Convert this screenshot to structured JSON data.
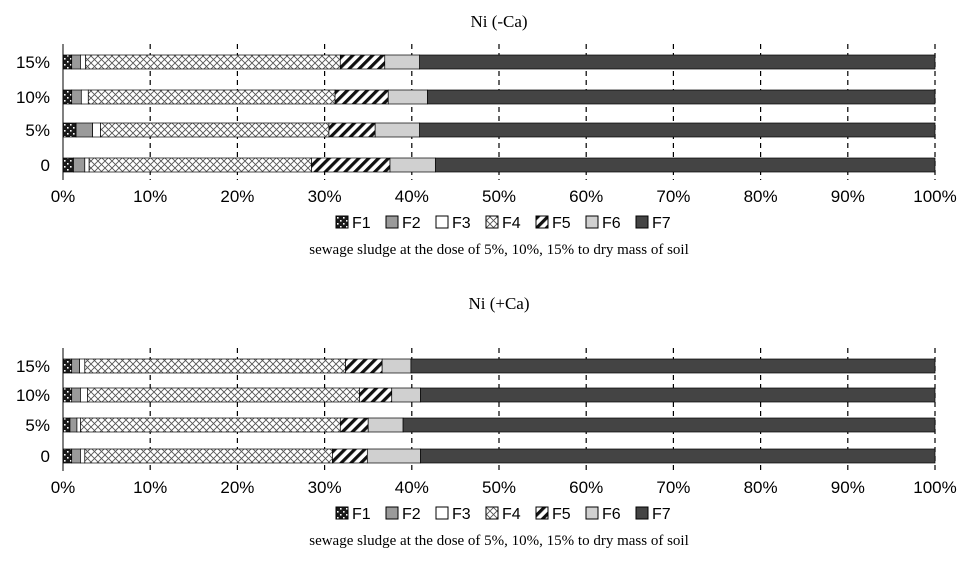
{
  "chart_data": [
    {
      "type": "bar",
      "orientation": "horizontal",
      "stacked": "percent",
      "title": "Ni (-Ca)",
      "xlabel": "sewage sludge at the dose of 5%, 10%, 15% to dry mass of soil",
      "categories": [
        "0",
        "5%",
        "10%",
        "15%"
      ],
      "xlim": [
        0,
        100
      ],
      "xticks": [
        "0%",
        "10%",
        "20%",
        "30%",
        "40%",
        "50%",
        "60%",
        "70%",
        "80%",
        "90%",
        "100%"
      ],
      "legend": "bottom",
      "series": [
        {
          "name": "F1",
          "values": [
            1.2,
            1.5,
            1.0,
            1.0
          ]
        },
        {
          "name": "F2",
          "values": [
            1.3,
            1.9,
            1.1,
            1.0
          ]
        },
        {
          "name": "F3",
          "values": [
            0.5,
            0.9,
            0.8,
            0.6
          ]
        },
        {
          "name": "F4",
          "values": [
            25.5,
            26.2,
            28.3,
            29.2
          ]
        },
        {
          "name": "F5",
          "values": [
            9.0,
            5.3,
            6.1,
            5.1
          ]
        },
        {
          "name": "F6",
          "values": [
            5.2,
            5.1,
            4.5,
            4.0
          ]
        },
        {
          "name": "F7",
          "values": [
            57.3,
            59.1,
            58.2,
            59.1
          ]
        }
      ]
    },
    {
      "type": "bar",
      "orientation": "horizontal",
      "stacked": "percent",
      "title": "Ni (+Ca)",
      "xlabel": "sewage sludge at the dose of 5%, 10%, 15% to dry mass of soil",
      "categories": [
        "0",
        "5%",
        "10%",
        "15%"
      ],
      "xlim": [
        0,
        100
      ],
      "xticks": [
        "0%",
        "10%",
        "20%",
        "30%",
        "40%",
        "50%",
        "60%",
        "70%",
        "80%",
        "90%",
        "100%"
      ],
      "legend": "bottom",
      "series": [
        {
          "name": "F1",
          "values": [
            1.0,
            0.8,
            1.0,
            1.0
          ]
        },
        {
          "name": "F2",
          "values": [
            1.0,
            0.8,
            1.0,
            0.9
          ]
        },
        {
          "name": "F3",
          "values": [
            0.5,
            0.4,
            0.8,
            0.6
          ]
        },
        {
          "name": "F4",
          "values": [
            28.4,
            29.8,
            31.2,
            29.9
          ]
        },
        {
          "name": "F5",
          "values": [
            4.0,
            3.2,
            3.7,
            4.2
          ]
        },
        {
          "name": "F6",
          "values": [
            6.1,
            4.0,
            3.3,
            3.3
          ]
        },
        {
          "name": "F7",
          "values": [
            59.0,
            61.0,
            59.0,
            60.1
          ]
        }
      ]
    }
  ]
}
